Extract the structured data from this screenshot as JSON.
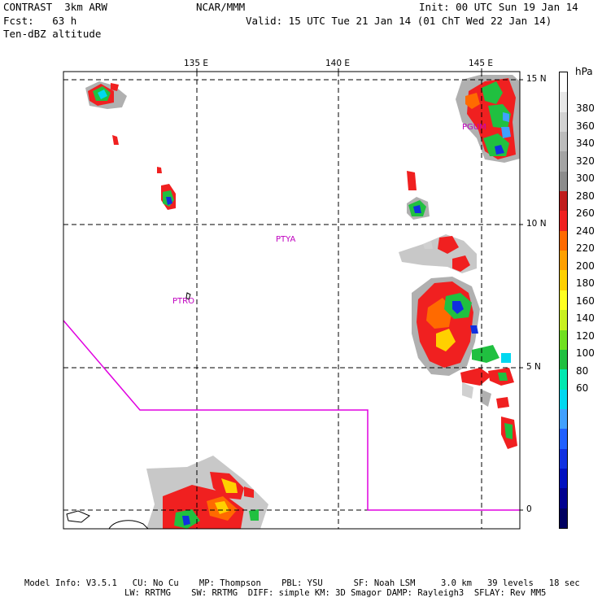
{
  "header": {
    "line1_left": "CONTRAST  3km ARW",
    "line1_center": "NCAR/MMM",
    "line1_right": "Init: 00 UTC Sun 19 Jan 14",
    "line2_left": "Fcst:   63 h",
    "line2_right": "Valid: 15 UTC Tue 21 Jan 14 (01 ChT Wed 22 Jan 14)",
    "line3_left": "Ten-dBZ altitude"
  },
  "map": {
    "lon_labels": [
      "135 E",
      "140 E",
      "145 E"
    ],
    "lat_labels": [
      "15 N",
      "10 N",
      "5 N",
      "0"
    ],
    "stations": [
      "PGUM",
      "PTYA",
      "PTRO"
    ],
    "boundary_color": "#e000e0",
    "station_color": "#c000c0"
  },
  "colorbar": {
    "unit": "hPa",
    "labels": [
      "380",
      "360",
      "340",
      "320",
      "300",
      "280",
      "260",
      "240",
      "220",
      "200",
      "180",
      "160",
      "140",
      "120",
      "100",
      "80",
      "60"
    ],
    "colors": [
      "#ffffff",
      "#e8e8e8",
      "#d2d2d2",
      "#bcbcbc",
      "#a4a4a4",
      "#8c8c8c",
      "#c01c1c",
      "#f02020",
      "#ff6a00",
      "#ffa000",
      "#ffd000",
      "#ffff20",
      "#c8f020",
      "#70e020",
      "#20c040",
      "#00e8b0",
      "#00d8f0",
      "#40a0ff",
      "#2060ff",
      "#1030e0",
      "#0010c0",
      "#000090",
      "#000060"
    ]
  },
  "footer": {
    "line1": "Model Info: V3.5.1   CU: No Cu    MP: Thompson    PBL: YSU      SF: Noah LSM     3.0 km   39 levels   18 sec",
    "line2": "LW: RRTMG    SW: RRTMG  DIFF: simple KM: 3D Smagor DAMP: Rayleigh3  SFLAY: Rev MM5"
  }
}
